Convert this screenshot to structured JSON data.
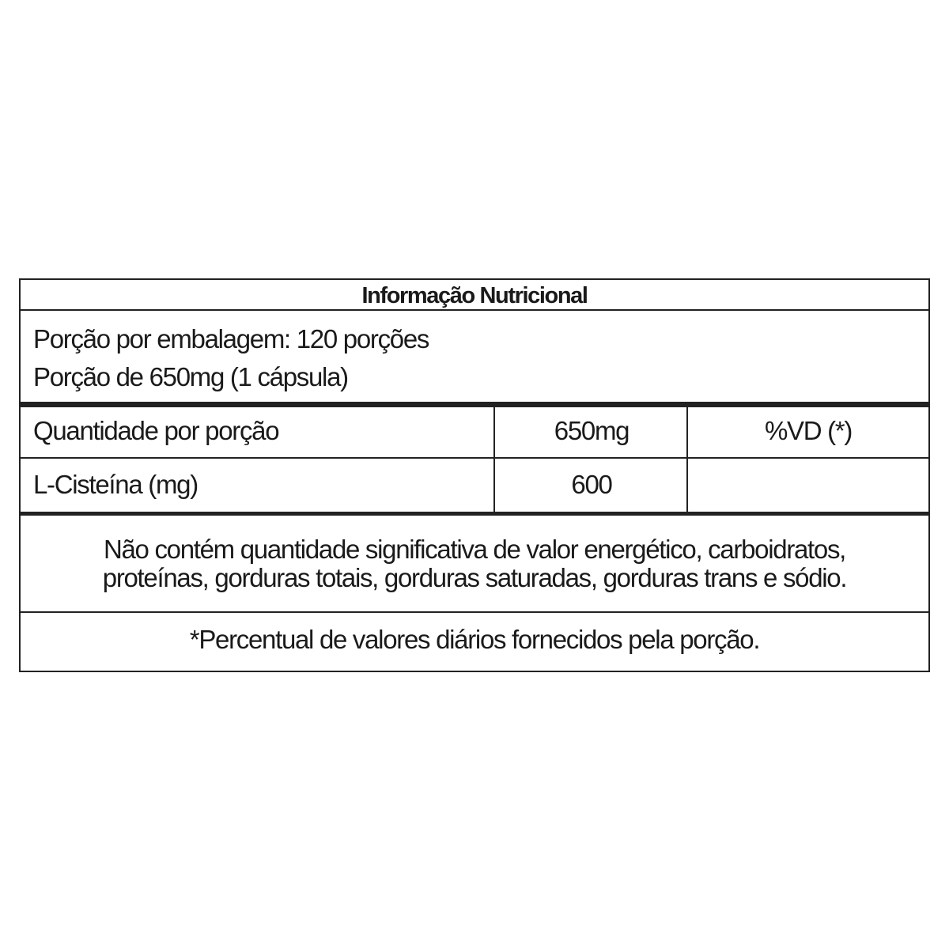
{
  "title": "Informação Nutricional",
  "servings_per_package": "Porção por embalagem: 120 porções",
  "serving_size": "Porção de 650mg (1 cápsula)",
  "header": {
    "label": "Quantidade por porção",
    "amount": "650mg",
    "dv": "%VD (*)"
  },
  "rows": [
    {
      "name": "L-Cisteína (mg)",
      "amount": "600",
      "dv": ""
    }
  ],
  "note_line1": "Não contém quantidade significativa de valor energético, carboidratos,",
  "note_line2": "proteínas, gorduras totais, gorduras saturadas, gorduras trans e sódio.",
  "footnote": "*Percentual de valores diários fornecidos pela porção."
}
